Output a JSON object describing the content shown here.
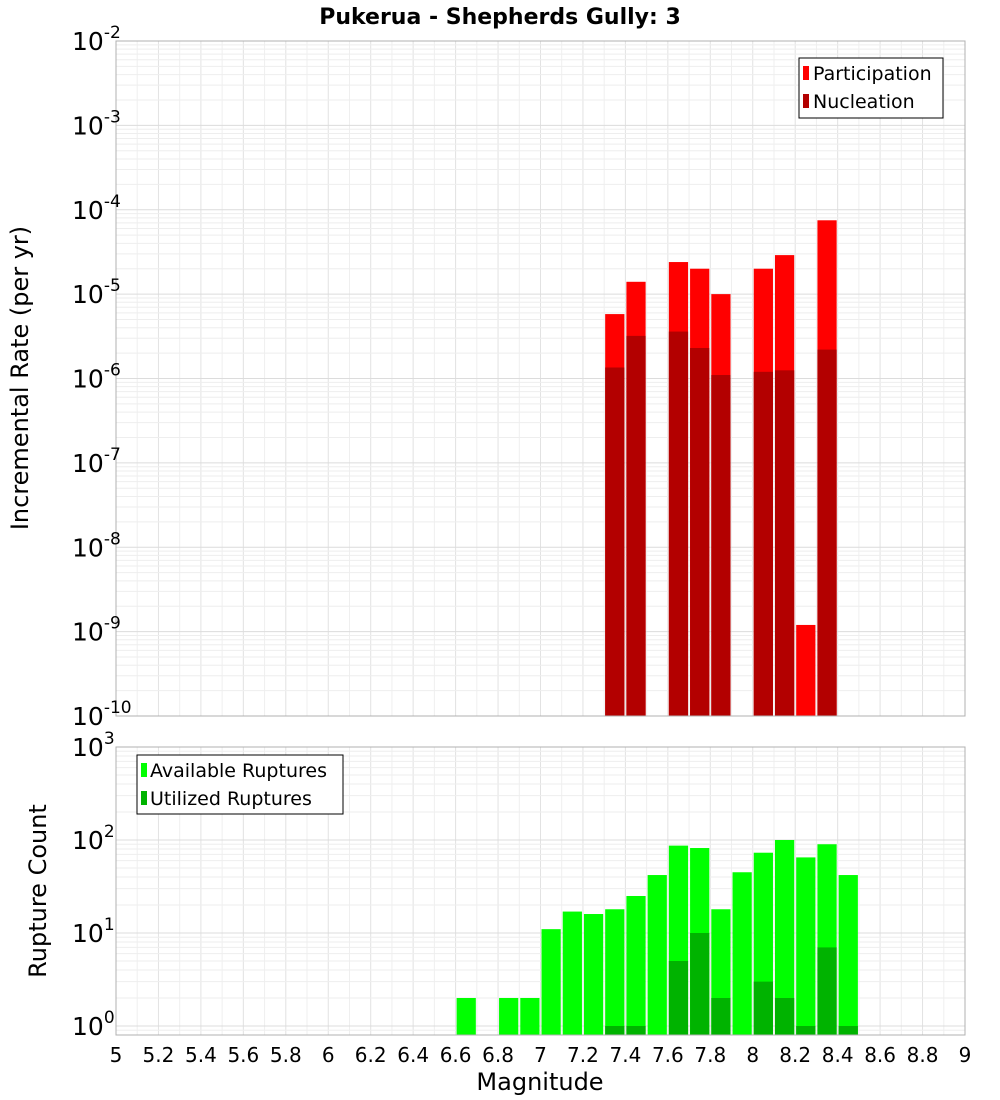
{
  "chart_data": [
    {
      "type": "bar",
      "title": "Pukerua - Shepherds Gully: 3",
      "ylabel": "Incremental Rate (per yr)",
      "xlabel": "",
      "xlim": [
        5,
        9
      ],
      "ylim": [
        1e-10,
        0.01
      ],
      "yscale": "log",
      "grid": true,
      "legend_position": "top-right",
      "bin_width": 0.1,
      "x": [
        7.35,
        7.45,
        7.65,
        7.75,
        7.85,
        8.05,
        8.15,
        8.25,
        8.35
      ],
      "series": [
        {
          "name": "Participation",
          "color": "#ff0000",
          "values": [
            5.8e-06,
            1.4e-05,
            2.4e-05,
            2e-05,
            1e-05,
            2e-05,
            2.9e-05,
            1.2e-09,
            7.5e-05
          ]
        },
        {
          "name": "Nucleation",
          "color": "#b30000",
          "values": [
            1.35e-06,
            3.2e-06,
            3.6e-06,
            2.3e-06,
            1.1e-06,
            1.2e-06,
            1.25e-06,
            1e-10,
            2.2e-06
          ]
        }
      ],
      "yticks": [
        {
          "base": "10",
          "exp": "-2"
        },
        {
          "base": "10",
          "exp": "-3"
        },
        {
          "base": "10",
          "exp": "-4"
        },
        {
          "base": "10",
          "exp": "-5"
        },
        {
          "base": "10",
          "exp": "-6"
        },
        {
          "base": "10",
          "exp": "-7"
        },
        {
          "base": "10",
          "exp": "-8"
        },
        {
          "base": "10",
          "exp": "-9"
        },
        {
          "base": "10",
          "exp": "-10"
        }
      ]
    },
    {
      "type": "bar",
      "title": "",
      "ylabel": "Rupture Count",
      "xlabel": "Magnitude",
      "xlim": [
        5,
        9
      ],
      "ylim": [
        0.8,
        1000
      ],
      "yscale": "log",
      "grid": true,
      "legend_position": "top-left",
      "bin_width": 0.1,
      "x": [
        6.65,
        6.85,
        6.95,
        7.05,
        7.15,
        7.25,
        7.35,
        7.45,
        7.55,
        7.65,
        7.75,
        7.85,
        7.95,
        8.05,
        8.15,
        8.25,
        8.35,
        8.45
      ],
      "series": [
        {
          "name": "Available Ruptures",
          "color": "#00ff00",
          "values": [
            2,
            2,
            2,
            11,
            17,
            16,
            18,
            25,
            42,
            87,
            82,
            18,
            45,
            73,
            100,
            65,
            90,
            42
          ]
        },
        {
          "name": "Utilized Ruptures",
          "color": "#00b300",
          "values": [
            0,
            0,
            0,
            0,
            0,
            0,
            1,
            1,
            0,
            5,
            10,
            2,
            0,
            3,
            2,
            1,
            7,
            1
          ]
        }
      ],
      "xticks": [
        "5",
        "5.2",
        "5.4",
        "5.6",
        "5.8",
        "6",
        "6.2",
        "6.4",
        "6.6",
        "6.8",
        "7",
        "7.2",
        "7.4",
        "7.6",
        "7.8",
        "8",
        "8.2",
        "8.4",
        "8.6",
        "8.8",
        "9"
      ],
      "yticks": [
        {
          "base": "10",
          "exp": "3"
        },
        {
          "base": "10",
          "exp": "2"
        },
        {
          "base": "10",
          "exp": "1"
        },
        {
          "base": "10",
          "exp": "0"
        }
      ]
    }
  ]
}
